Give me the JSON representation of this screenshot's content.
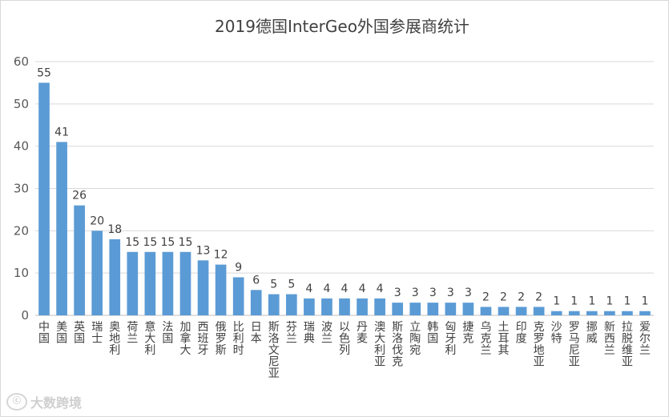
{
  "chart_data": {
    "type": "bar",
    "title": "2019德国InterGeo外国参展商统计",
    "ylim": [
      0,
      60
    ],
    "yticks": [
      0,
      10,
      20,
      30,
      40,
      50,
      60
    ],
    "grid": true,
    "legend": "none",
    "bar_color": "#5b9bd5",
    "categories": [
      "中国",
      "美国",
      "英国",
      "瑞士",
      "奥地利",
      "荷兰",
      "意大利",
      "法国",
      "加拿大",
      "西班牙",
      "俄罗斯",
      "比利时",
      "日本",
      "斯洛文尼亚",
      "芬兰",
      "瑞典",
      "波兰",
      "以色列",
      "丹麦",
      "澳大利亚",
      "斯洛伐克",
      "立陶宛",
      "韩国",
      "匈牙利",
      "捷克",
      "乌克兰",
      "土耳其",
      "印度",
      "克罗地亚",
      "沙特",
      "罗马尼亚",
      "挪威",
      "新西兰",
      "拉脱维亚",
      "爱尔兰"
    ],
    "values": [
      55,
      41,
      26,
      20,
      18,
      15,
      15,
      15,
      15,
      13,
      12,
      9,
      6,
      5,
      5,
      4,
      4,
      4,
      4,
      4,
      3,
      3,
      3,
      3,
      3,
      2,
      2,
      2,
      2,
      1,
      1,
      1,
      1,
      1,
      1
    ]
  },
  "watermark": {
    "logo_text": "ⓒ",
    "text": "大数跨境"
  }
}
